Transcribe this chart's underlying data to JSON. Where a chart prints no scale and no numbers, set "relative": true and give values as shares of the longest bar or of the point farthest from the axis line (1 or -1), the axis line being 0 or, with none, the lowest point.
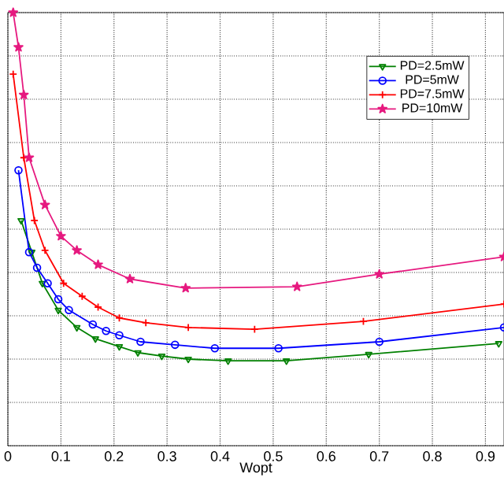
{
  "chart_data": {
    "type": "line",
    "xlabel": "Wopt",
    "relative": true,
    "xlim": [
      0,
      0.935
    ],
    "xticks": [
      0,
      0.1,
      0.2,
      0.3,
      0.4,
      0.5,
      0.6,
      0.7,
      0.8,
      0.9
    ],
    "grid": true,
    "legend": "top right",
    "tick_labels": "x",
    "line_style": "solid",
    "series": [
      {
        "name": "PD=2.5mW",
        "color": "#008000",
        "marker": "triangle",
        "x": [
          0.025,
          0.045,
          0.065,
          0.095,
          0.13,
          0.165,
          0.21,
          0.245,
          0.29,
          0.34,
          0.415,
          0.525,
          0.68,
          0.925
        ],
        "values": [
          0.52,
          0.447,
          0.375,
          0.313,
          0.273,
          0.247,
          0.229,
          0.215,
          0.207,
          0.2,
          0.196,
          0.196,
          0.211,
          0.236
        ]
      },
      {
        "name": "PD=5mW",
        "color": "#0000ff",
        "marker": "circle",
        "x": [
          0.02,
          0.04,
          0.055,
          0.075,
          0.095,
          0.115,
          0.16,
          0.185,
          0.21,
          0.25,
          0.315,
          0.39,
          0.51,
          0.7,
          0.935
        ],
        "values": [
          0.636,
          0.447,
          0.411,
          0.375,
          0.338,
          0.313,
          0.28,
          0.265,
          0.255,
          0.24,
          0.233,
          0.225,
          0.225,
          0.24,
          0.273
        ]
      },
      {
        "name": "PD=7.5mW",
        "color": "#ff0000",
        "marker": "cross",
        "x": [
          0.01,
          0.03,
          0.05,
          0.07,
          0.105,
          0.14,
          0.17,
          0.21,
          0.26,
          0.34,
          0.465,
          0.67,
          0.935
        ],
        "values": [
          0.858,
          0.665,
          0.52,
          0.451,
          0.375,
          0.345,
          0.32,
          0.295,
          0.284,
          0.273,
          0.269,
          0.287,
          0.327
        ]
      },
      {
        "name": "PD=10mW",
        "color": "#e6197f",
        "marker": "star",
        "x": [
          0.01,
          0.02,
          0.03,
          0.04,
          0.07,
          0.1,
          0.13,
          0.17,
          0.23,
          0.335,
          0.545,
          0.7,
          0.935
        ],
        "values": [
          1.0,
          0.92,
          0.81,
          0.665,
          0.556,
          0.484,
          0.451,
          0.418,
          0.385,
          0.364,
          0.367,
          0.396,
          0.436
        ]
      }
    ]
  }
}
